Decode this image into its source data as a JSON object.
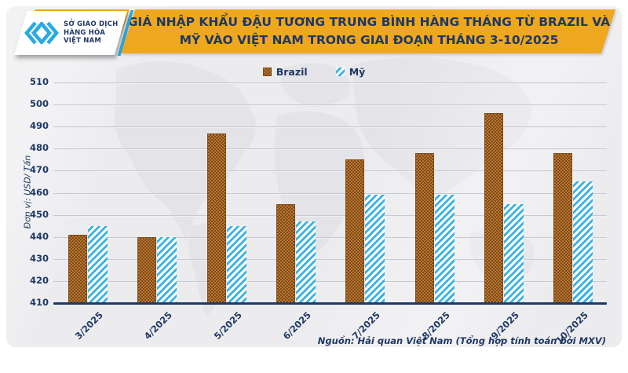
{
  "logo": {
    "lines": [
      "SỞ GIAO DỊCH",
      "HÀNG HÓA",
      "VIỆT NAM"
    ]
  },
  "header": {
    "title_line1": "GIÁ NHẬP KHẨU ĐẬU TƯƠNG TRUNG BÌNH HÀNG THÁNG TỪ BRAZIL VÀ",
    "title_line2": "MỸ VÀO VIỆT NAM TRONG GIAI ĐOẠN THÁNG 3-10/2025"
  },
  "axis_unit": "Đơn vị: USD/ Tấn",
  "source": "Nguồn: Hải quan Việt Nam (Tổng hợp tính toán bởi MXV)",
  "colors": {
    "gold": "#efa71e",
    "navy": "#1f3864",
    "cyan": "#3ab2e5",
    "brown_dark": "#7c4a18",
    "brown_light": "#bb7630",
    "panel": "#ececef",
    "gridline": "#c6c9d2"
  },
  "chart_data": {
    "type": "bar",
    "categories": [
      "3/2025",
      "4/2025",
      "5/2025",
      "6/2025",
      "7/2025",
      "8/2025",
      "9/2025",
      "10/2025"
    ],
    "series": [
      {
        "name": "Brazil",
        "pattern": "brown-check",
        "values": [
          441,
          440,
          487,
          455,
          475,
          478,
          496,
          478
        ]
      },
      {
        "name": "Mỹ",
        "pattern": "cyan-hatch",
        "values": [
          445,
          440,
          445,
          447,
          459,
          459,
          455,
          465
        ]
      }
    ],
    "title": "Giá nhập khẩu đậu tương trung bình hàng tháng từ Brazil và Mỹ vào Việt Nam trong giai đoạn tháng 3-10/2025",
    "xlabel": "",
    "ylabel": "Đơn vị: USD/ Tấn",
    "ylim": [
      410,
      510
    ],
    "ytick_step": 10,
    "grid": true,
    "legend_position": "top"
  }
}
